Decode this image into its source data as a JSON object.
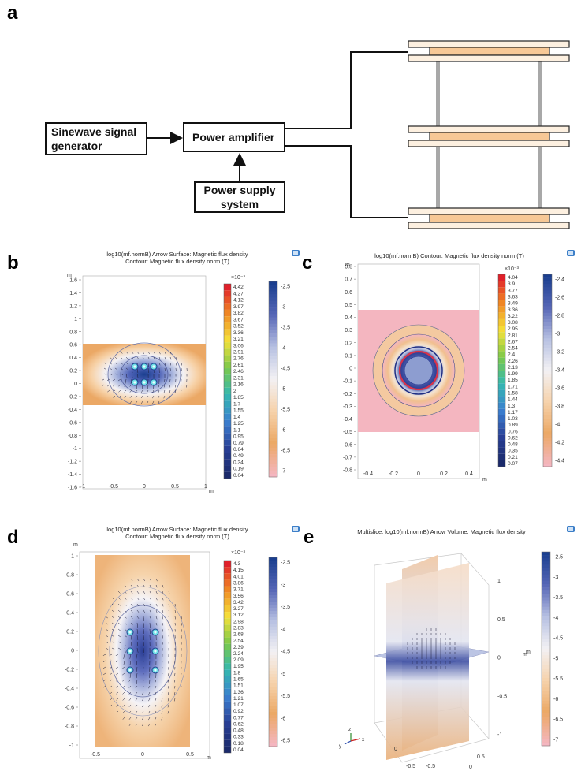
{
  "panels": {
    "a": "a",
    "b": "b",
    "c": "c",
    "d": "d",
    "e": "e"
  },
  "diagram": {
    "signal_generator_line1": "Sinewave signal",
    "signal_generator_line2": "generator",
    "amplifier": "Power amplifier",
    "power_supply_line1": "Power supply",
    "power_supply_line2": "system"
  },
  "colors": {
    "coil_fill": "#f7c896",
    "plate_fill": "#fdf0e0",
    "rod": "#a8a8a8",
    "deep_blue": "#1b3f8f",
    "light_blue": "#d6def0",
    "orange": "#eba865",
    "pink": "#f4b6c0"
  },
  "chart_data": [
    {
      "id": "b",
      "type": "heatmap",
      "title_line1": "log10(mf.normB)  Arrow Surface: Magnetic flux density",
      "title_line2": "Contour: Magnetic flux density norm (T)",
      "axis_unit": "m",
      "y_ticks": [
        "1.6",
        "1.4",
        "1.2",
        "1",
        "0.8",
        "0.6",
        "0.4",
        "0.2",
        "0",
        "-0.2",
        "-0.4",
        "-0.6",
        "-0.8",
        "-1",
        "-1.2",
        "-1.4",
        "-1.6"
      ],
      "x_ticks": [
        "-1",
        "-0.5",
        "0",
        "0.5",
        "1"
      ],
      "x_unit_label": "m",
      "contour_scale_exp": "×10⁻³",
      "contour_scale": [
        "4.42",
        "4.27",
        "4.12",
        "3.97",
        "3.82",
        "3.67",
        "3.52",
        "3.36",
        "3.21",
        "3.06",
        "2.91",
        "2.76",
        "2.61",
        "2.46",
        "2.31",
        "2.16",
        "2",
        "1.85",
        "1.7",
        "1.55",
        "1.4",
        "1.25",
        "1.1",
        "0.95",
        "0.79",
        "0.64",
        "0.49",
        "0.34",
        "0.19",
        "0.04"
      ],
      "surface_scale": [
        "-2.5",
        "-3",
        "-3.5",
        "-4",
        "-4.5",
        "-5",
        "-5.5",
        "-6",
        "-6.5",
        "-7"
      ]
    },
    {
      "id": "c",
      "type": "heatmap",
      "title_line1": "log10(mf.normB)  Contour: Magnetic flux density norm (T)",
      "axis_unit": "m",
      "y_ticks": [
        "0.8",
        "0.7",
        "0.6",
        "0.5",
        "0.4",
        "0.3",
        "0.2",
        "0.1",
        "0",
        "-0.1",
        "-0.2",
        "-0.3",
        "-0.4",
        "-0.5",
        "-0.6",
        "-0.7",
        "-0.8"
      ],
      "x_ticks": [
        "-0.4",
        "-0.2",
        "0",
        "0.2",
        "0.4"
      ],
      "x_unit_label": "m",
      "contour_scale_exp": "×10⁻³",
      "contour_scale": [
        "4.04",
        "3.9",
        "3.77",
        "3.63",
        "3.49",
        "3.36",
        "3.22",
        "3.08",
        "2.95",
        "2.81",
        "2.67",
        "2.54",
        "2.4",
        "2.26",
        "2.13",
        "1.99",
        "1.85",
        "1.71",
        "1.58",
        "1.44",
        "1.3",
        "1.17",
        "1.03",
        "0.89",
        "0.76",
        "0.62",
        "0.48",
        "0.35",
        "0.21",
        "0.07"
      ],
      "surface_scale": [
        "-2.4",
        "-2.6",
        "-2.8",
        "-3",
        "-3.2",
        "-3.4",
        "-3.6",
        "-3.8",
        "-4",
        "-4.2",
        "-4.4"
      ]
    },
    {
      "id": "d",
      "type": "heatmap",
      "title_line1": "log10(mf.normB)  Arrow Surface: Magnetic flux density",
      "title_line2": "Contour: Magnetic flux density norm (T)",
      "axis_unit": "m",
      "y_ticks": [
        "1",
        "0.8",
        "0.6",
        "0.4",
        "0.2",
        "0",
        "-0.2",
        "-0.4",
        "-0.6",
        "-0.8",
        "-1"
      ],
      "x_ticks": [
        "-0.5",
        "0",
        "0.5"
      ],
      "x_unit_label": "m",
      "contour_scale_exp": "×10⁻³",
      "contour_scale": [
        "4.3",
        "4.15",
        "4.01",
        "3.86",
        "3.71",
        "3.56",
        "3.42",
        "3.27",
        "3.12",
        "2.98",
        "2.83",
        "2.68",
        "2.54",
        "2.39",
        "2.24",
        "2.09",
        "1.95",
        "1.8",
        "1.65",
        "1.51",
        "1.36",
        "1.21",
        "1.07",
        "0.92",
        "0.77",
        "0.62",
        "0.48",
        "0.33",
        "0.18",
        "0.04"
      ],
      "surface_scale": [
        "-2.5",
        "-3",
        "-3.5",
        "-4",
        "-4.5",
        "-5",
        "-5.5",
        "-6",
        "-6.5"
      ]
    },
    {
      "id": "e",
      "type": "heatmap",
      "title_line1": "Multislice: log10(mf.normB)  Arrow Volume: Magnetic flux density",
      "z_ticks": [
        "1",
        "0.5",
        "0",
        "-0.5",
        "-1"
      ],
      "z_unit": "m",
      "x_ticks": [
        "0.5",
        "0",
        "-0.5"
      ],
      "y_ticks": [
        "0",
        "-0.5"
      ],
      "x_unit_label": "m",
      "bottom_labels": [
        "0.5",
        "0",
        "-0.5"
      ],
      "axis_triad": [
        "z",
        "y",
        "x"
      ],
      "surface_scale": [
        "-2.5",
        "-3",
        "-3.5",
        "-4",
        "-4.5",
        "-5",
        "-5.5",
        "-6",
        "-6.5",
        "-7"
      ]
    }
  ]
}
